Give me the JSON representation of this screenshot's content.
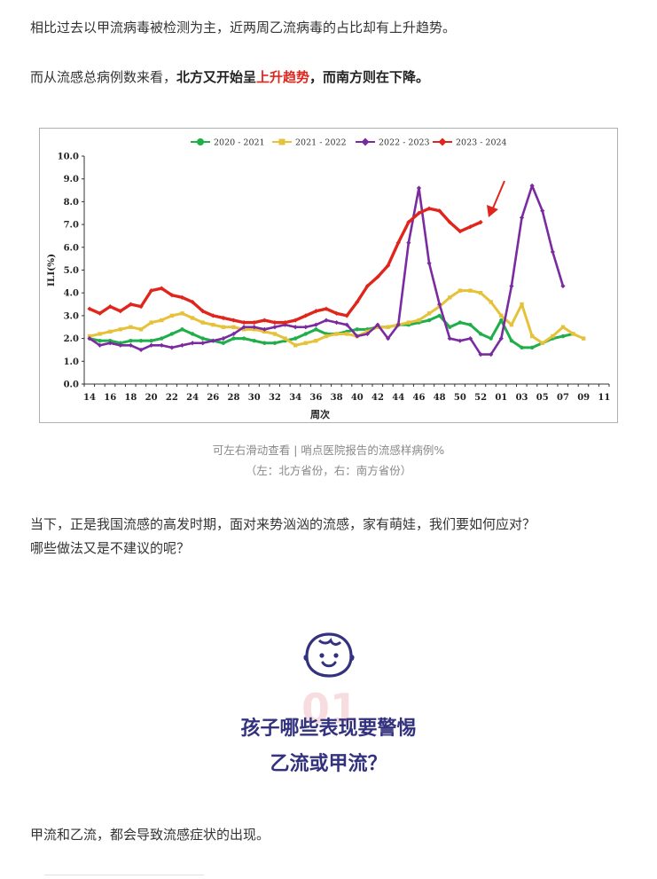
{
  "article": {
    "para1": "相比过去以甲流病毒被检测为主，近两周乙流病毒的占比却有上升趋势。",
    "para2_prefix": "而从流感总病例数来看，",
    "para2_bold1": "北方又开始呈",
    "para2_red": "上升趋势",
    "para2_bold2": "，而南方则在下降。",
    "caption1": "可左右滑动查看 | 哨点医院报告的流感样病例%",
    "caption2": "（左：北方省份，右：南方省份）",
    "para3_line1": "当下，正是我国流感的高发时期，面对来势汹汹的流感，家有萌娃，我们要如何应对？",
    "para3_line2": "哪些做法又是不建议的呢？",
    "section_number": "01",
    "heading_line1": "孩子哪些表现要警惕",
    "heading_line2": "乙流或甲流？",
    "para4": "甲流和乙流，都会导致流感症状的出现。",
    "icon": "baby-face-icon"
  },
  "chart_data": {
    "type": "line",
    "xlabel": "周次",
    "ylabel": "ILI(%)",
    "ylim": [
      0,
      10
    ],
    "yticks": [
      "0.0",
      "1.0",
      "2.0",
      "3.0",
      "4.0",
      "5.0",
      "6.0",
      "7.0",
      "8.0",
      "9.0",
      "10.0"
    ],
    "xticks": [
      "14",
      "16",
      "18",
      "20",
      "22",
      "24",
      "26",
      "28",
      "30",
      "32",
      "34",
      "36",
      "38",
      "40",
      "42",
      "44",
      "46",
      "48",
      "50",
      "52",
      "01",
      "03",
      "05",
      "07",
      "09",
      "11"
    ],
    "legend_position": "top",
    "series": [
      {
        "name": "2020 - 2021",
        "color": "#1fae4a",
        "marker": "circle",
        "values": [
          2.0,
          1.9,
          1.9,
          1.8,
          1.9,
          1.9,
          1.9,
          2.0,
          2.2,
          2.4,
          2.2,
          2.0,
          1.9,
          1.8,
          2.0,
          2.0,
          1.9,
          1.8,
          1.8,
          1.9,
          2.0,
          2.2,
          2.4,
          2.2,
          2.2,
          2.3,
          2.4,
          2.4,
          2.5,
          2.5,
          2.6,
          2.6,
          2.7,
          2.8,
          3.0,
          2.5,
          2.7,
          2.6,
          2.2,
          2.0,
          2.8,
          1.9,
          1.6,
          1.6,
          1.8,
          2.0,
          2.1,
          2.2
        ]
      },
      {
        "name": "2021 - 2022",
        "color": "#e6c23a",
        "marker": "square",
        "values": [
          2.1,
          2.2,
          2.3,
          2.4,
          2.5,
          2.4,
          2.7,
          2.8,
          3.0,
          3.1,
          2.9,
          2.7,
          2.6,
          2.5,
          2.5,
          2.4,
          2.4,
          2.3,
          2.2,
          2.0,
          1.7,
          1.8,
          1.9,
          2.1,
          2.2,
          2.2,
          2.1,
          2.3,
          2.5,
          2.5,
          2.6,
          2.7,
          2.8,
          3.1,
          3.4,
          3.8,
          4.1,
          4.1,
          4.0,
          3.6,
          3.0,
          2.6,
          3.5,
          2.1,
          1.8,
          2.1,
          2.5,
          2.2,
          2.0
        ]
      },
      {
        "name": "2022 - 2023",
        "color": "#7a2ba0",
        "marker": "diamond",
        "values": [
          2.0,
          1.7,
          1.8,
          1.7,
          1.7,
          1.5,
          1.7,
          1.7,
          1.6,
          1.7,
          1.8,
          1.8,
          1.9,
          2.0,
          2.2,
          2.5,
          2.5,
          2.4,
          2.5,
          2.6,
          2.5,
          2.5,
          2.6,
          2.8,
          2.7,
          2.6,
          2.1,
          2.2,
          2.6,
          2.0,
          2.6,
          6.2,
          8.6,
          5.3,
          3.5,
          2.0,
          1.9,
          2.0,
          1.3,
          1.3,
          2.0,
          4.3,
          7.3,
          8.7,
          7.6,
          5.8,
          4.3
        ]
      },
      {
        "name": "2023 - 2024",
        "color": "#e0261c",
        "marker": "diamond",
        "values": [
          3.3,
          3.1,
          3.4,
          3.2,
          3.5,
          3.4,
          4.1,
          4.2,
          3.9,
          3.8,
          3.6,
          3.2,
          3.0,
          2.9,
          2.8,
          2.7,
          2.7,
          2.8,
          2.7,
          2.7,
          2.8,
          3.0,
          3.2,
          3.3,
          3.1,
          3.0,
          3.6,
          4.3,
          4.7,
          5.2,
          6.2,
          7.1,
          7.5,
          7.7,
          7.6,
          7.1,
          6.7,
          6.9,
          7.1
        ]
      }
    ],
    "annotation": "red-arrow"
  }
}
